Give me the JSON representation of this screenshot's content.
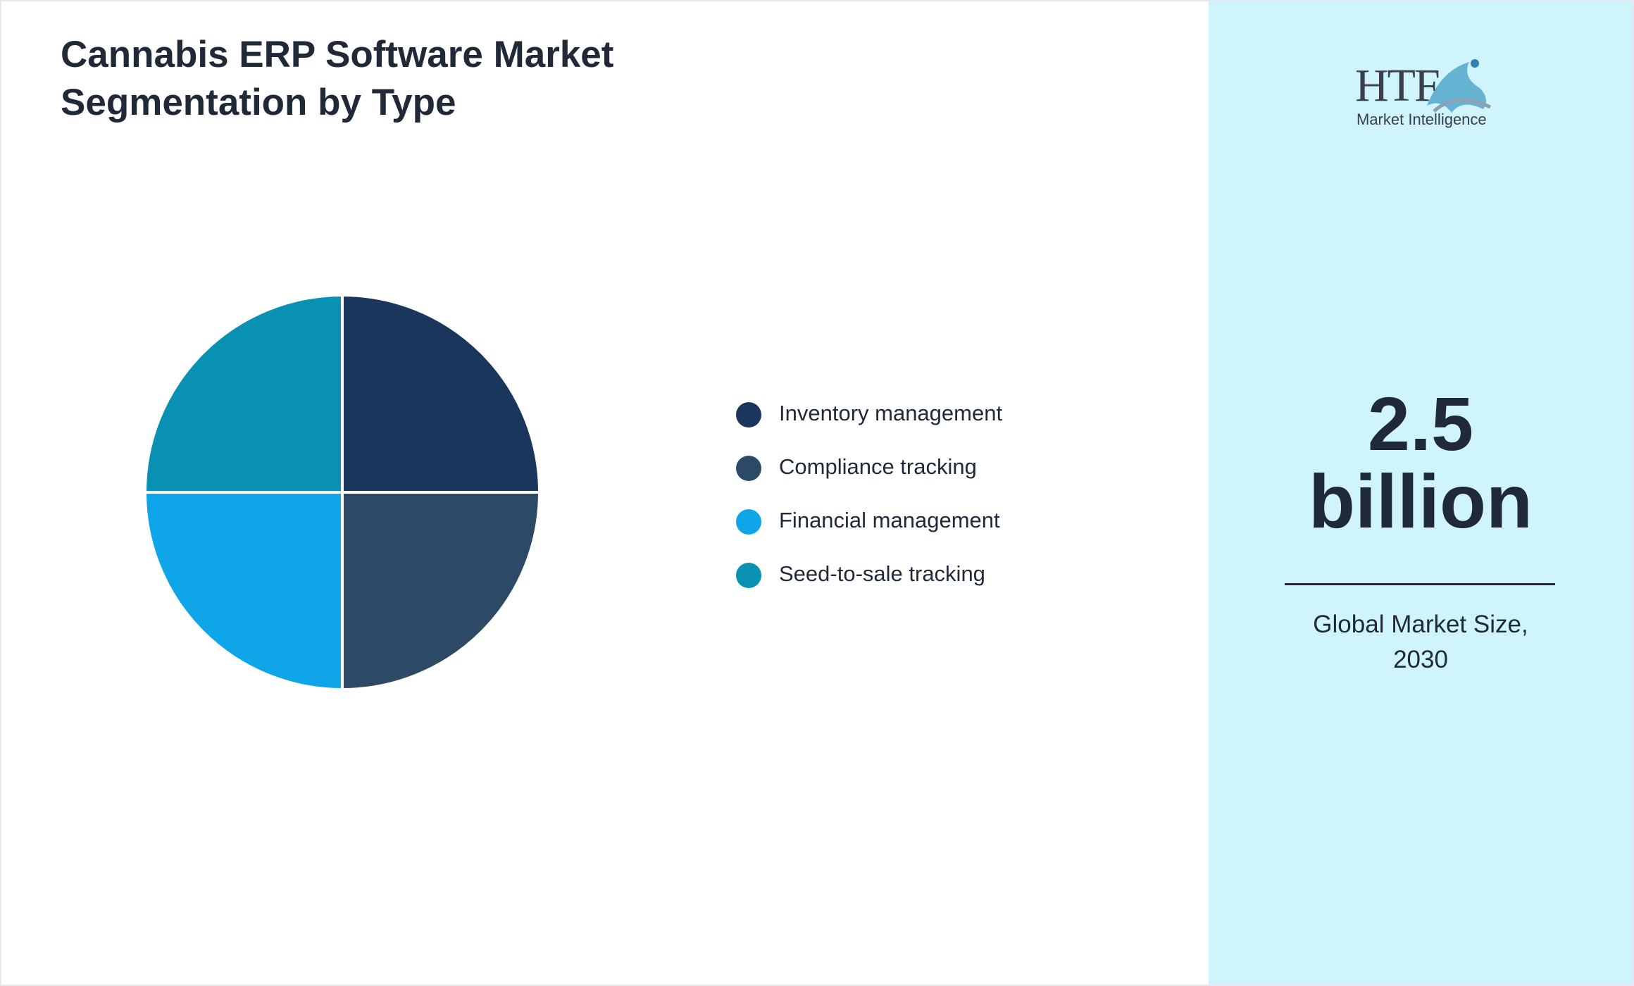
{
  "chart_data": {
    "type": "pie",
    "title": "Cannabis ERP Software Market Segmentation by Type",
    "categories": [
      "Inventory management",
      "Compliance tracking",
      "Financial management",
      "Seed-to-sale tracking"
    ],
    "values": [
      25,
      25,
      25,
      25
    ],
    "colors": [
      "#1b365d",
      "#2c4a66",
      "#0ea5e9",
      "#0891b2"
    ]
  },
  "logo": {
    "text": "HTF",
    "subtitle": "Market Intelligence"
  },
  "market_size": {
    "value": "2.5",
    "unit": "billion",
    "label": "Global Market Size, 2030"
  }
}
